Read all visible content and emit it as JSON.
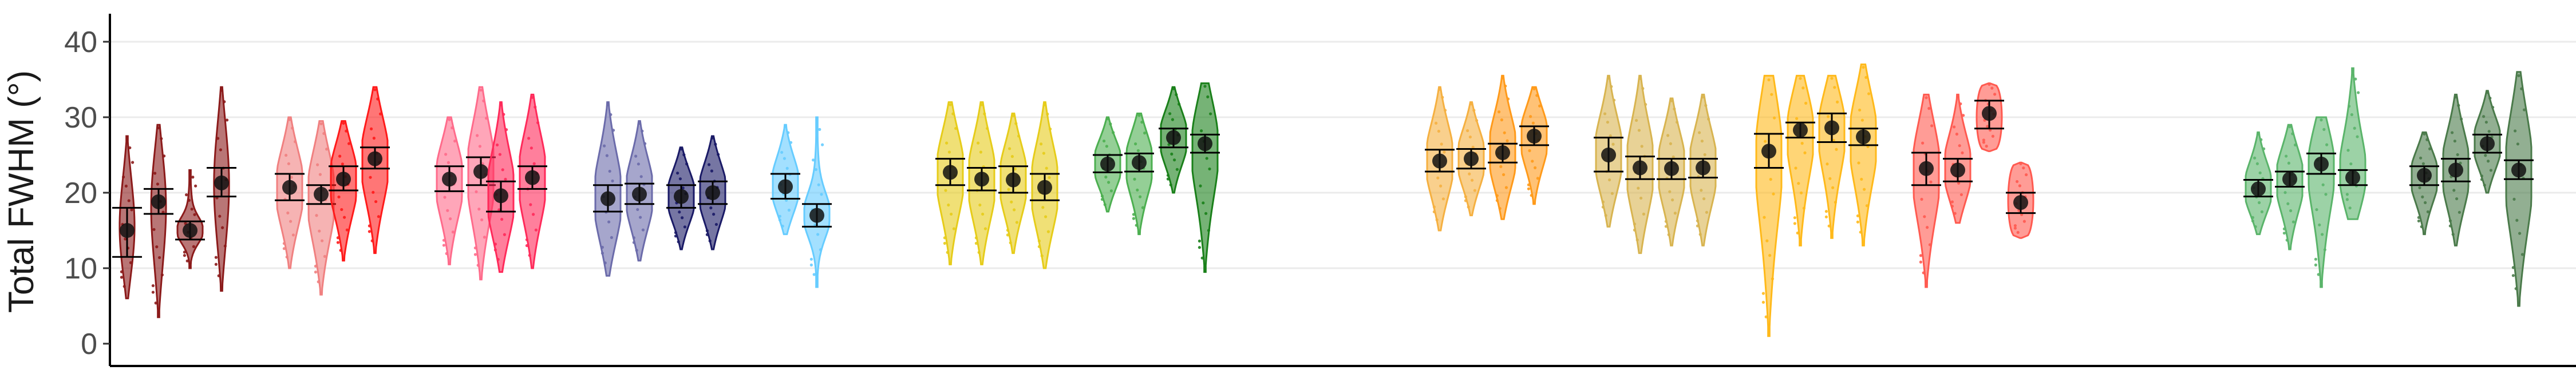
{
  "chart_data": {
    "type": "violin",
    "ylabel": "Total FWHM (°)",
    "xlabel": "",
    "ylim": [
      0,
      43
    ],
    "yticks": [
      0,
      10,
      20,
      30,
      40
    ],
    "grid": "horizontal",
    "legend": "none",
    "groups": [
      {
        "color": "#8b1a1a",
        "violins": [
          {
            "min": 6,
            "max": 27.5,
            "mean": 15,
            "q1": 11.5,
            "q3": 18,
            "shape": "thin"
          },
          {
            "min": 3.5,
            "max": 29,
            "mean": 18.8,
            "q1": 17.2,
            "q3": 20.5,
            "shape": "thin"
          },
          {
            "min": 10,
            "max": 23,
            "mean": 15,
            "q1": 13.8,
            "q3": 16.2,
            "shape": "bulb"
          },
          {
            "min": 7,
            "max": 34,
            "mean": 21.3,
            "q1": 19.5,
            "q3": 23.3,
            "shape": "thin"
          }
        ]
      },
      {
        "color": "#f08080",
        "violins": [
          {
            "min": 10,
            "max": 30,
            "mean": 20.7,
            "q1": 19,
            "q3": 22.5,
            "shape": "wide"
          },
          {
            "min": 6.5,
            "max": 29.5,
            "mean": 19.8,
            "q1": 18.5,
            "q3": 21,
            "shape": "wide"
          }
        ]
      },
      {
        "color": "#ff1a1a",
        "violins": [
          {
            "min": 11,
            "max": 29.5,
            "mean": 21.8,
            "q1": 20.3,
            "q3": 23.5,
            "shape": "wide"
          },
          {
            "min": 12,
            "max": 34,
            "mean": 24.5,
            "q1": 23.2,
            "q3": 26,
            "shape": "wide"
          }
        ]
      },
      {
        "color": "#ff6b8b",
        "violins": [
          {
            "min": 10.5,
            "max": 30,
            "mean": 21.8,
            "q1": 20.2,
            "q3": 23.5,
            "shape": "wide"
          },
          {
            "min": 8.5,
            "max": 34,
            "mean": 22.8,
            "q1": 21,
            "q3": 24.7,
            "shape": "wide"
          }
        ]
      },
      {
        "color": "#ff2a5a",
        "violins": [
          {
            "min": 9.5,
            "max": 32,
            "mean": 19.6,
            "q1": 17.5,
            "q3": 21.5,
            "shape": "wide"
          },
          {
            "min": 10,
            "max": 33,
            "mean": 22,
            "q1": 20.5,
            "q3": 23.5,
            "shape": "wide"
          }
        ]
      },
      {
        "color": "#6b6baa",
        "violins": [
          {
            "min": 9,
            "max": 32,
            "mean": 19.2,
            "q1": 17.5,
            "q3": 21,
            "shape": "wide"
          },
          {
            "min": 11,
            "max": 29.5,
            "mean": 19.8,
            "q1": 18.5,
            "q3": 21.2,
            "shape": "wide"
          }
        ]
      },
      {
        "color": "#1a1a66",
        "violins": [
          {
            "min": 12.5,
            "max": 26,
            "mean": 19.5,
            "q1": 18,
            "q3": 21,
            "shape": "wide"
          },
          {
            "min": 12.5,
            "max": 27.5,
            "mean": 20,
            "q1": 18.5,
            "q3": 21.5,
            "shape": "wide"
          }
        ]
      },
      {
        "color": "#66ccff",
        "violins": [
          {
            "min": 14.5,
            "max": 29,
            "mean": 20.8,
            "q1": 19.2,
            "q3": 22.5,
            "shape": "wide"
          },
          {
            "min": 7.5,
            "max": 30,
            "mean": 17,
            "q1": 15.5,
            "q3": 18.5,
            "shape": "bulb"
          }
        ]
      },
      {
        "color": "#e6cc1a",
        "violins": [
          {
            "min": 10.5,
            "max": 32,
            "mean": 22.7,
            "q1": 21,
            "q3": 24.5,
            "shape": "wide"
          },
          {
            "min": 10.5,
            "max": 32,
            "mean": 21.8,
            "q1": 20.3,
            "q3": 23.3,
            "shape": "wide"
          },
          {
            "min": 12,
            "max": 30.5,
            "mean": 21.7,
            "q1": 20,
            "q3": 23.5,
            "shape": "wide"
          },
          {
            "min": 10,
            "max": 32,
            "mean": 20.7,
            "q1": 19,
            "q3": 22.5,
            "shape": "wide"
          }
        ]
      },
      {
        "color": "#4caf50",
        "violins": [
          {
            "min": 17.5,
            "max": 30,
            "mean": 23.8,
            "q1": 22.7,
            "q3": 25,
            "shape": "wide"
          },
          {
            "min": 14.5,
            "max": 30.5,
            "mean": 24,
            "q1": 22.8,
            "q3": 25.2,
            "shape": "wide"
          }
        ]
      },
      {
        "color": "#1a801a",
        "violins": [
          {
            "min": 20,
            "max": 34,
            "mean": 27.3,
            "q1": 26,
            "q3": 28.5,
            "shape": "wide"
          },
          {
            "min": 9.5,
            "max": 34.5,
            "mean": 26.5,
            "q1": 25.3,
            "q3": 27.7,
            "shape": "wide"
          }
        ]
      },
      {
        "color": "#f5b041",
        "violins": [
          {
            "min": 15,
            "max": 34,
            "mean": 24.2,
            "q1": 22.8,
            "q3": 25.7,
            "shape": "wide"
          },
          {
            "min": 17,
            "max": 32,
            "mean": 24.5,
            "q1": 23.2,
            "q3": 25.8,
            "shape": "wide"
          }
        ]
      },
      {
        "color": "#ff9a1a",
        "violins": [
          {
            "min": 16.5,
            "max": 35.5,
            "mean": 25.3,
            "q1": 24,
            "q3": 26.5,
            "shape": "wide"
          },
          {
            "min": 18.5,
            "max": 34,
            "mean": 27.5,
            "q1": 26.3,
            "q3": 28.8,
            "shape": "wide"
          }
        ]
      },
      {
        "color": "#d8b450",
        "violins": [
          {
            "min": 15.5,
            "max": 35.5,
            "mean": 25,
            "q1": 22.8,
            "q3": 27.3,
            "shape": "wide"
          },
          {
            "min": 12,
            "max": 35.5,
            "mean": 23.3,
            "q1": 21.8,
            "q3": 24.8,
            "shape": "wide"
          },
          {
            "min": 13,
            "max": 32.5,
            "mean": 23.2,
            "q1": 21.8,
            "q3": 24.5,
            "shape": "wide"
          },
          {
            "min": 13,
            "max": 33,
            "mean": 23.3,
            "q1": 22,
            "q3": 24.5,
            "shape": "wide"
          }
        ]
      },
      {
        "color": "#ffb91a",
        "violins": [
          {
            "min": 1,
            "max": 35.5,
            "mean": 25.5,
            "q1": 23.3,
            "q3": 27.8,
            "shape": "wide"
          },
          {
            "min": 13,
            "max": 35.5,
            "mean": 28.3,
            "q1": 27.3,
            "q3": 29.3,
            "shape": "wide"
          },
          {
            "min": 14,
            "max": 35.5,
            "mean": 28.6,
            "q1": 26.7,
            "q3": 30.5,
            "shape": "wide"
          },
          {
            "min": 13,
            "max": 37,
            "mean": 27.4,
            "q1": 26.3,
            "q3": 28.5,
            "shape": "wide"
          }
        ]
      },
      {
        "color": "#ff5a50",
        "violins": [
          {
            "min": 7.5,
            "max": 33,
            "mean": 23.2,
            "q1": 21,
            "q3": 25.3,
            "shape": "wide"
          },
          {
            "min": 16,
            "max": 33,
            "mean": 23,
            "q1": 21.5,
            "q3": 24.5,
            "shape": "wide"
          },
          {
            "min": 25.5,
            "max": 34.5,
            "mean": 30.5,
            "q1": 28.5,
            "q3": 32.2,
            "shape": "block"
          },
          {
            "min": 14,
            "max": 24,
            "mean": 18.7,
            "q1": 17.3,
            "q3": 20,
            "shape": "block"
          }
        ]
      },
      {
        "color": "#5ab46a",
        "violins": [
          {
            "min": 14.5,
            "max": 28,
            "mean": 20.5,
            "q1": 19.5,
            "q3": 21.7,
            "shape": "wide"
          },
          {
            "min": 12.5,
            "max": 29,
            "mean": 21.8,
            "q1": 20.8,
            "q3": 22.8,
            "shape": "wide"
          },
          {
            "min": 7.5,
            "max": 30,
            "mean": 23.8,
            "q1": 22.5,
            "q3": 25.2,
            "shape": "wide"
          },
          {
            "min": 16.5,
            "max": 36.5,
            "mean": 22,
            "q1": 21,
            "q3": 23,
            "shape": "wide"
          }
        ]
      },
      {
        "color": "#4a7a4a",
        "violins": [
          {
            "min": 14.5,
            "max": 28,
            "mean": 22.3,
            "q1": 21,
            "q3": 23.5,
            "shape": "wide"
          },
          {
            "min": 13,
            "max": 33,
            "mean": 23,
            "q1": 21.5,
            "q3": 24.5,
            "shape": "wide"
          },
          {
            "min": 20,
            "max": 33.5,
            "mean": 26.5,
            "q1": 25.3,
            "q3": 27.7,
            "shape": "wide"
          },
          {
            "min": 5,
            "max": 36,
            "mean": 23,
            "q1": 21.8,
            "q3": 24.3,
            "shape": "wide"
          }
        ]
      }
    ]
  }
}
